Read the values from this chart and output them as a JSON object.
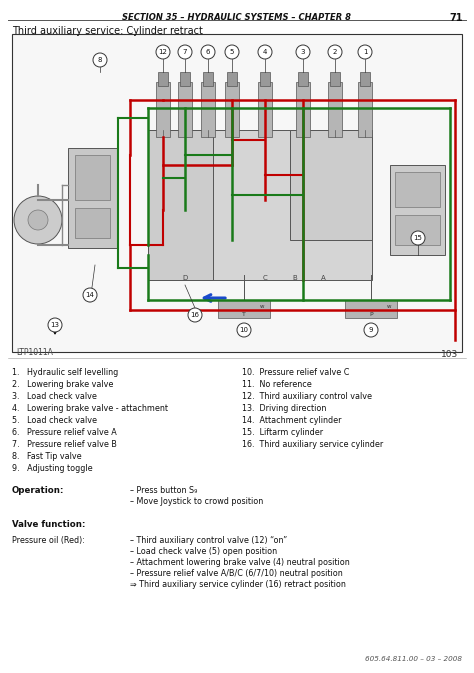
{
  "title_header": "SECTION 35 – HYDRAULIC SYSTEMS – CHAPTER 8",
  "page_number": "71",
  "diagram_title": "Third auxiliary service: Cylinder retract",
  "diagram_label": "LTP1011A",
  "diagram_page": "103",
  "bg_color": "#ffffff",
  "red_color": "#c00000",
  "green_color": "#1a7a1a",
  "blue_color": "#1a4acc",
  "footer_code": "605.64.811.00 – 03 – 2008",
  "legend_left": [
    "1.   Hydraulic self levelling",
    "2.   Lowering brake valve",
    "3.   Load check valve",
    "4.   Lowering brake valve - attachment",
    "5.   Load check valve",
    "6.   Pressure relief valve A",
    "7.   Pressure relief valve B",
    "8.   Fast Tip valve",
    "9.   Adjusting toggle"
  ],
  "legend_right": [
    "10.  Pressure relief valve C",
    "11.  No reference",
    "12.  Third auxiliary control valve",
    "13.  Driving direction",
    "14.  Attachment cylinder",
    "15.  Liftarm cylinder",
    "16.  Third auxiliary service cylinder"
  ],
  "operation_label": "Operation:",
  "operation_lines": [
    "– Press button S₉",
    "– Move Joystick to crowd position"
  ],
  "valve_function_label": "Valve function:",
  "pressure_label": "Pressure oil (Red):",
  "pressure_lines": [
    "– Third auxiliary control valve (12) “on”",
    "– Load check valve (5) open position",
    "– Attachment lowering brake valve (4) neutral position",
    "– Pressure relief valve A/B/C (6/7/10) neutral position",
    "⇒ Third auxiliary service cylinder (16) retract position"
  ]
}
